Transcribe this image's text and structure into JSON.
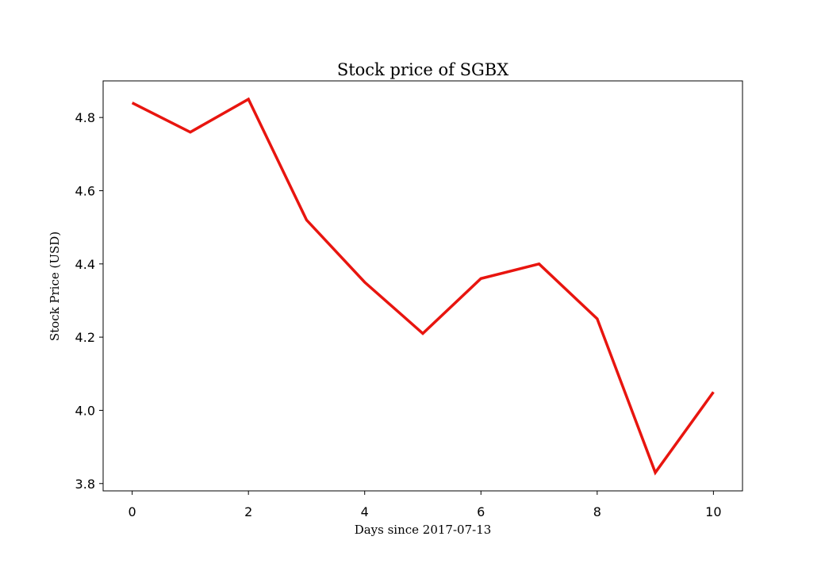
{
  "chart_data": {
    "type": "line",
    "title": "Stock price of SGBX",
    "xlabel": "Days since 2017-07-13",
    "ylabel": "Stock Price (USD)",
    "x": [
      0,
      1,
      2,
      3,
      4,
      5,
      6,
      7,
      8,
      9,
      10
    ],
    "series": [
      {
        "values": [
          4.84,
          4.76,
          4.85,
          4.52,
          4.35,
          4.21,
          4.36,
          4.4,
          4.25,
          3.83,
          4.05
        ],
        "color": "#e8150f"
      }
    ],
    "xlim": [
      -0.5,
      10.5
    ],
    "ylim": [
      3.78,
      4.9
    ],
    "xticks": [
      0,
      2,
      4,
      6,
      8,
      10
    ],
    "yticks": [
      3.8,
      4.0,
      4.2,
      4.4,
      4.6,
      4.8
    ],
    "ytick_labels": [
      "3.8",
      "4.0",
      "4.2",
      "4.4",
      "4.6",
      "4.8"
    ],
    "grid": false,
    "legend": "none"
  }
}
